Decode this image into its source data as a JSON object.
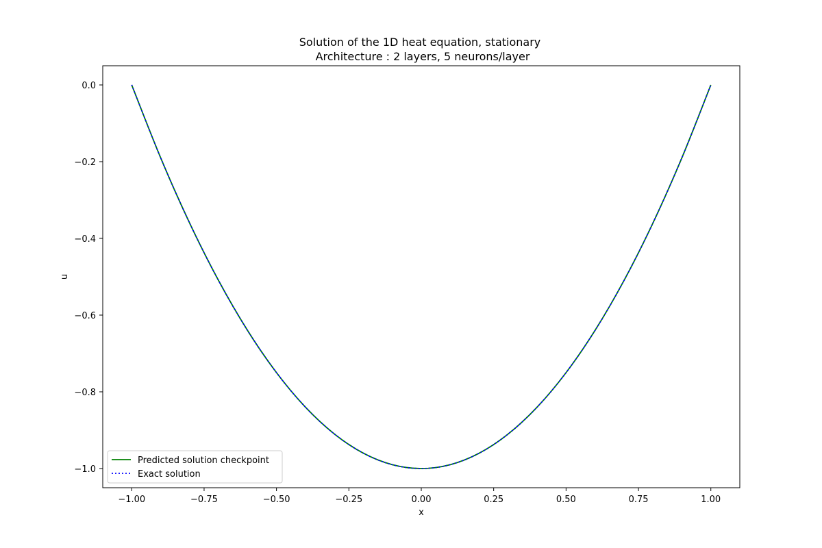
{
  "chart_data": {
    "type": "line",
    "title": "Solution of the 1D heat equation, stationary",
    "subtitle": "Architecture : 2 layers, 5 neurons/layer",
    "xlabel": "x",
    "ylabel": "u",
    "xlim": [
      -1.1,
      1.1
    ],
    "ylim": [
      -1.05,
      0.05
    ],
    "x_ticks": [
      -1.0,
      -0.75,
      -0.5,
      -0.25,
      0.0,
      0.25,
      0.5,
      0.75,
      1.0
    ],
    "x_tick_labels": [
      "−1.00",
      "−0.75",
      "−0.50",
      "−0.25",
      "0.00",
      "0.25",
      "0.50",
      "0.75",
      "1.00"
    ],
    "y_ticks": [
      0.0,
      -0.2,
      -0.4,
      -0.6,
      -0.8,
      -1.0
    ],
    "y_tick_labels": [
      "0.0",
      "−0.2",
      "−0.4",
      "−0.6",
      "−0.8",
      "−1.0"
    ],
    "grid": false,
    "legend_position": "lower-left",
    "series": [
      {
        "name": "Predicted solution checkpoint",
        "color": "#008000",
        "style": "solid",
        "x": [
          -1.0,
          -0.9,
          -0.8,
          -0.7,
          -0.6,
          -0.5,
          -0.4,
          -0.3,
          -0.2,
          -0.1,
          0.0,
          0.1,
          0.2,
          0.3,
          0.4,
          0.5,
          0.6,
          0.7,
          0.8,
          0.9,
          1.0
        ],
        "y": [
          0.0,
          -0.19,
          -0.36,
          -0.51,
          -0.64,
          -0.75,
          -0.84,
          -0.91,
          -0.96,
          -0.99,
          -1.0,
          -0.99,
          -0.96,
          -0.91,
          -0.84,
          -0.75,
          -0.64,
          -0.51,
          -0.36,
          -0.19,
          0.0
        ]
      },
      {
        "name": "Exact solution",
        "color": "#0000ff",
        "style": "dotted",
        "x": [
          -1.0,
          -0.9,
          -0.8,
          -0.7,
          -0.6,
          -0.5,
          -0.4,
          -0.3,
          -0.2,
          -0.1,
          0.0,
          0.1,
          0.2,
          0.3,
          0.4,
          0.5,
          0.6,
          0.7,
          0.8,
          0.9,
          1.0
        ],
        "y": [
          0.0,
          -0.19,
          -0.36,
          -0.51,
          -0.64,
          -0.75,
          -0.84,
          -0.91,
          -0.96,
          -0.99,
          -1.0,
          -0.99,
          -0.96,
          -0.91,
          -0.84,
          -0.75,
          -0.64,
          -0.51,
          -0.36,
          -0.19,
          0.0
        ]
      }
    ]
  }
}
